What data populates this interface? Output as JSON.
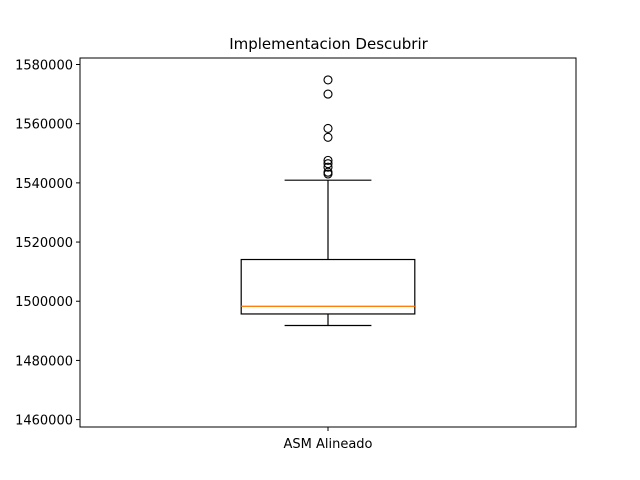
{
  "chart_data": {
    "type": "boxplot",
    "title": "Implementacion Descubrir",
    "xlabel": "",
    "ylabel": "",
    "categories": [
      "ASM Alineado"
    ],
    "ylim": [
      1457500,
      1582200
    ],
    "yticks": [
      1460000,
      1480000,
      1500000,
      1520000,
      1540000,
      1560000,
      1580000
    ],
    "ytick_labels": [
      "1460000",
      "1480000",
      "1500000",
      "1520000",
      "1540000",
      "1560000",
      "1580000"
    ],
    "boxes": [
      {
        "name": "ASM Alineado",
        "whisker_low": 1491800,
        "q1": 1495700,
        "median": 1498300,
        "q3": 1514100,
        "whisker_high": 1540900,
        "outliers": [
          1543000,
          1543600,
          1545300,
          1546500,
          1547600,
          1555400,
          1558400,
          1570000,
          1574800
        ]
      }
    ],
    "colors": {
      "median": "#ff7f0e",
      "box": "#000000",
      "axes": "#000000"
    }
  }
}
